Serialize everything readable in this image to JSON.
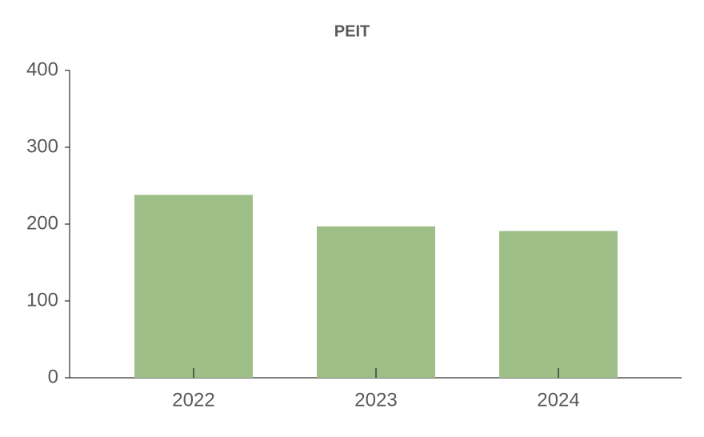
{
  "chart_data": {
    "type": "bar",
    "title": "PEIT",
    "categories": [
      "2022",
      "2023",
      "2024"
    ],
    "values": [
      238,
      197,
      191
    ],
    "color": "#9fbf88",
    "ylim": [
      0,
      400
    ],
    "yticks": [
      0,
      100,
      200,
      300,
      400
    ]
  }
}
